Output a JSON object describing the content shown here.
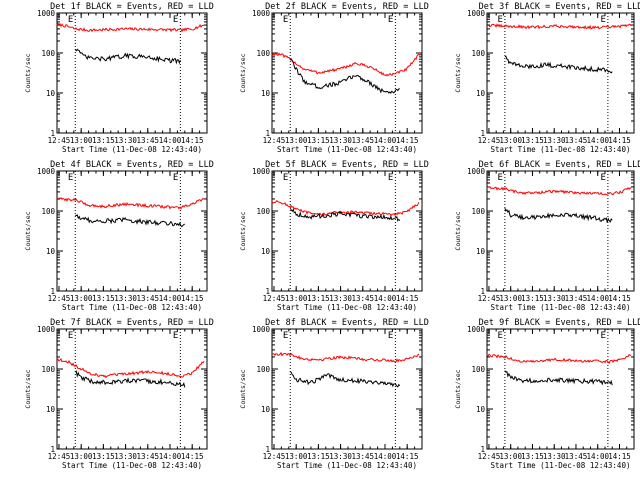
{
  "colors": {
    "events": "#000000",
    "lld": "#ff0000",
    "axes": "#000000",
    "background": "#ffffff"
  },
  "chart_data": [
    {
      "type": "line",
      "title": "Det 1f BLACK = Events, RED = LLD",
      "xlabel": "Start Time (11-Dec-08 12:43:40)",
      "ylabel": "Counts/sec",
      "yscale": "log",
      "ylim": [
        1,
        1000
      ],
      "y_ticks": [
        "1",
        "10",
        "100",
        "1000"
      ],
      "xlim": [
        "12:43:40",
        "14:25:00"
      ],
      "x_ticks": [
        "12:45",
        "13:00",
        "13:15",
        "13:30",
        "13:45",
        "14:00",
        "14:15"
      ],
      "markers": [
        {
          "label": "E",
          "time": "12:56"
        },
        {
          "label": "E",
          "time": "14:07"
        }
      ],
      "series": [
        {
          "key": "lld",
          "x": [
            "12:43:40",
            "12:50",
            "12:56",
            "13:05",
            "13:15",
            "13:30",
            "13:45",
            "14:00",
            "14:07",
            "14:15",
            "14:23"
          ],
          "values": [
            520,
            470,
            400,
            370,
            380,
            400,
            390,
            380,
            370,
            400,
            500
          ]
        },
        {
          "key": "events",
          "x": [
            "12:56",
            "12:58",
            "13:00",
            "13:05",
            "13:15",
            "13:30",
            "13:45",
            "14:00",
            "14:07"
          ],
          "values": [
            130,
            120,
            90,
            75,
            70,
            85,
            80,
            65,
            62
          ]
        }
      ]
    },
    {
      "type": "line",
      "title": "Det 2f BLACK = Events, RED = LLD",
      "xlabel": "Start Time (11-Dec-08 12:43:40)",
      "ylabel": "Counts/sec",
      "yscale": "log",
      "ylim": [
        1,
        1000
      ],
      "y_ticks": [
        "1",
        "10",
        "100",
        "1000"
      ],
      "xlim": [
        "12:43:40",
        "14:25:00"
      ],
      "x_ticks": [
        "12:45",
        "13:00",
        "13:15",
        "13:30",
        "13:45",
        "14:00",
        "14:15"
      ],
      "markers": [
        {
          "label": "E",
          "time": "12:56"
        },
        {
          "label": "E",
          "time": "14:07"
        }
      ],
      "series": [
        {
          "key": "lld",
          "x": [
            "12:43:40",
            "12:50",
            "12:56",
            "13:05",
            "13:15",
            "13:30",
            "13:40",
            "13:50",
            "14:00",
            "14:07",
            "14:15",
            "14:23"
          ],
          "values": [
            95,
            90,
            70,
            40,
            32,
            40,
            55,
            45,
            28,
            30,
            40,
            90
          ]
        },
        {
          "key": "events",
          "x": [
            "12:56",
            "13:00",
            "13:05",
            "13:15",
            "13:30",
            "13:40",
            "13:50",
            "14:00",
            "14:07",
            "14:10"
          ],
          "values": [
            70,
            40,
            20,
            14,
            18,
            28,
            18,
            10,
            11,
            14
          ]
        }
      ]
    },
    {
      "type": "line",
      "title": "Det 3f BLACK = Events, RED = LLD",
      "xlabel": "Start Time (11-Dec-08 12:43:40)",
      "ylabel": "Counts/sec",
      "yscale": "log",
      "ylim": [
        1,
        1000
      ],
      "y_ticks": [
        "1",
        "10",
        "100",
        "1000"
      ],
      "xlim": [
        "12:43:40",
        "14:25:00"
      ],
      "x_ticks": [
        "12:45",
        "13:00",
        "13:15",
        "13:30",
        "13:45",
        "14:00",
        "14:15"
      ],
      "markers": [
        {
          "label": "E",
          "time": "12:56"
        },
        {
          "label": "E",
          "time": "14:07"
        }
      ],
      "series": [
        {
          "key": "lld",
          "x": [
            "12:43:40",
            "12:56",
            "13:15",
            "13:30",
            "13:45",
            "14:00",
            "14:15",
            "14:23"
          ],
          "values": [
            490,
            470,
            440,
            470,
            450,
            430,
            460,
            500
          ]
        },
        {
          "key": "events",
          "x": [
            "12:56",
            "13:00",
            "13:10",
            "13:25",
            "13:40",
            "13:55",
            "14:07",
            "14:10"
          ],
          "values": [
            85,
            55,
            45,
            50,
            45,
            40,
            38,
            35
          ]
        }
      ]
    },
    {
      "type": "line",
      "title": "Det 4f BLACK = Events, RED = LLD",
      "xlabel": "Start Time (11-Dec-08 12:43:40)",
      "ylabel": "Counts/sec",
      "yscale": "log",
      "ylim": [
        1,
        1000
      ],
      "y_ticks": [
        "1",
        "10",
        "100",
        "1000"
      ],
      "xlim": [
        "12:43:40",
        "14:25:00"
      ],
      "x_ticks": [
        "12:45",
        "13:00",
        "13:15",
        "13:30",
        "13:45",
        "14:00",
        "14:15"
      ],
      "markers": [
        {
          "label": "E",
          "time": "12:56"
        },
        {
          "label": "E",
          "time": "14:07"
        }
      ],
      "series": [
        {
          "key": "lld",
          "x": [
            "12:43:40",
            "12:56",
            "13:05",
            "13:15",
            "13:30",
            "13:45",
            "14:00",
            "14:07",
            "14:15",
            "14:23"
          ],
          "values": [
            200,
            190,
            140,
            130,
            150,
            135,
            125,
            120,
            150,
            200
          ]
        },
        {
          "key": "events",
          "x": [
            "12:56",
            "13:00",
            "13:10",
            "13:30",
            "13:45",
            "14:00",
            "14:07",
            "14:10"
          ],
          "values": [
            80,
            65,
            55,
            60,
            52,
            50,
            45,
            42
          ]
        }
      ]
    },
    {
      "type": "line",
      "title": "Det 5f BLACK = Events, RED = LLD",
      "xlabel": "Start Time (11-Dec-08 12:43:40)",
      "ylabel": "Counts/sec",
      "yscale": "log",
      "ylim": [
        1,
        1000
      ],
      "y_ticks": [
        "1",
        "10",
        "100",
        "1000"
      ],
      "xlim": [
        "12:43:40",
        "14:25:00"
      ],
      "x_ticks": [
        "12:45",
        "13:00",
        "13:15",
        "13:30",
        "13:45",
        "14:00",
        "14:15"
      ],
      "markers": [
        {
          "label": "E",
          "time": "12:56"
        },
        {
          "label": "E",
          "time": "14:07"
        }
      ],
      "series": [
        {
          "key": "lld",
          "x": [
            "12:43:40",
            "12:50",
            "12:56",
            "13:05",
            "13:15",
            "13:30",
            "13:45",
            "14:00",
            "14:07",
            "14:15",
            "14:23"
          ],
          "values": [
            170,
            165,
            130,
            95,
            80,
            95,
            90,
            85,
            80,
            100,
            160
          ]
        },
        {
          "key": "events",
          "x": [
            "12:56",
            "13:00",
            "13:10",
            "13:30",
            "13:45",
            "14:00",
            "14:07",
            "14:10"
          ],
          "values": [
            120,
            85,
            70,
            85,
            75,
            70,
            65,
            60
          ]
        }
      ]
    },
    {
      "type": "line",
      "title": "Det 6f BLACK = Events, RED = LLD",
      "xlabel": "Start Time (11-Dec-08 12:43:40)",
      "ylabel": "Counts/sec",
      "yscale": "log",
      "ylim": [
        1,
        1000
      ],
      "y_ticks": [
        "1",
        "10",
        "100",
        "1000"
      ],
      "xlim": [
        "12:43:40",
        "14:25:00"
      ],
      "x_ticks": [
        "12:45",
        "13:00",
        "13:15",
        "13:30",
        "13:45",
        "14:00",
        "14:15"
      ],
      "markers": [
        {
          "label": "E",
          "time": "12:56"
        },
        {
          "label": "E",
          "time": "14:07"
        }
      ],
      "series": [
        {
          "key": "lld",
          "x": [
            "12:43:40",
            "12:56",
            "13:05",
            "13:15",
            "13:30",
            "13:45",
            "14:00",
            "14:07",
            "14:15",
            "14:23"
          ],
          "values": [
            380,
            360,
            290,
            280,
            310,
            290,
            270,
            265,
            290,
            380
          ]
        },
        {
          "key": "events",
          "x": [
            "12:56",
            "13:00",
            "13:10",
            "13:30",
            "13:45",
            "14:00",
            "14:07",
            "14:10"
          ],
          "values": [
            120,
            80,
            65,
            80,
            75,
            65,
            58,
            55
          ]
        }
      ]
    },
    {
      "type": "line",
      "title": "Det 7f BLACK = Events, RED = LLD",
      "xlabel": "Start Time (11-Dec-08 12:43:40)",
      "ylabel": "Counts/sec",
      "yscale": "log",
      "ylim": [
        1,
        1000
      ],
      "y_ticks": [
        "1",
        "10",
        "100",
        "1000"
      ],
      "xlim": [
        "12:43:40",
        "14:25:00"
      ],
      "x_ticks": [
        "12:45",
        "13:00",
        "13:15",
        "13:30",
        "13:45",
        "14:00",
        "14:15"
      ],
      "markers": [
        {
          "label": "E",
          "time": "12:56"
        },
        {
          "label": "E",
          "time": "14:07"
        }
      ],
      "series": [
        {
          "key": "lld",
          "x": [
            "12:43:40",
            "12:50",
            "12:56",
            "13:05",
            "13:15",
            "13:30",
            "13:45",
            "14:00",
            "14:07",
            "14:15",
            "14:23"
          ],
          "values": [
            170,
            160,
            120,
            80,
            65,
            75,
            85,
            75,
            65,
            80,
            160
          ]
        },
        {
          "key": "events",
          "x": [
            "12:56",
            "13:00",
            "13:10",
            "13:30",
            "13:45",
            "14:00",
            "14:07",
            "14:10"
          ],
          "values": [
            85,
            60,
            45,
            50,
            50,
            45,
            40,
            38
          ]
        }
      ]
    },
    {
      "type": "line",
      "title": "Det 8f BLACK = Events, RED = LLD",
      "xlabel": "Start Time (11-Dec-08 12:43:40)",
      "ylabel": "Counts/sec",
      "yscale": "log",
      "ylim": [
        1,
        1000
      ],
      "y_ticks": [
        "1",
        "10",
        "100",
        "1000"
      ],
      "xlim": [
        "12:43:40",
        "14:25:00"
      ],
      "x_ticks": [
        "12:45",
        "13:00",
        "13:15",
        "13:30",
        "13:45",
        "14:00",
        "14:15"
      ],
      "markers": [
        {
          "label": "E",
          "time": "12:56"
        },
        {
          "label": "E",
          "time": "14:07"
        }
      ],
      "series": [
        {
          "key": "lld",
          "x": [
            "12:43:40",
            "12:56",
            "13:05",
            "13:15",
            "13:30",
            "13:45",
            "14:00",
            "14:07",
            "14:15",
            "14:23"
          ],
          "values": [
            240,
            230,
            180,
            170,
            200,
            175,
            165,
            160,
            180,
            230
          ]
        },
        {
          "key": "events",
          "x": [
            "12:56",
            "13:00",
            "13:10",
            "13:20",
            "13:30",
            "13:45",
            "14:00",
            "14:07",
            "14:10"
          ],
          "values": [
            85,
            55,
            45,
            70,
            55,
            50,
            45,
            40,
            38
          ]
        }
      ]
    },
    {
      "type": "line",
      "title": "Det 9f BLACK = Events, RED = LLD",
      "xlabel": "Start Time (11-Dec-08 12:43:40)",
      "ylabel": "Counts/sec",
      "yscale": "log",
      "ylim": [
        1,
        1000
      ],
      "y_ticks": [
        "1",
        "10",
        "100",
        "1000"
      ],
      "xlim": [
        "12:43:40",
        "14:25:00"
      ],
      "x_ticks": [
        "12:45",
        "13:00",
        "13:15",
        "13:30",
        "13:45",
        "14:00",
        "14:15"
      ],
      "markers": [
        {
          "label": "E",
          "time": "12:56"
        },
        {
          "label": "E",
          "time": "14:07"
        }
      ],
      "series": [
        {
          "key": "lld",
          "x": [
            "12:43:40",
            "12:56",
            "13:05",
            "13:15",
            "13:30",
            "13:45",
            "14:00",
            "14:07",
            "14:15",
            "14:23"
          ],
          "values": [
            220,
            200,
            160,
            150,
            175,
            160,
            155,
            150,
            170,
            230
          ]
        },
        {
          "key": "events",
          "x": [
            "12:56",
            "13:00",
            "13:10",
            "13:30",
            "13:45",
            "14:00",
            "14:07",
            "14:10"
          ],
          "values": [
            90,
            60,
            50,
            55,
            50,
            48,
            45,
            44
          ]
        }
      ]
    }
  ]
}
